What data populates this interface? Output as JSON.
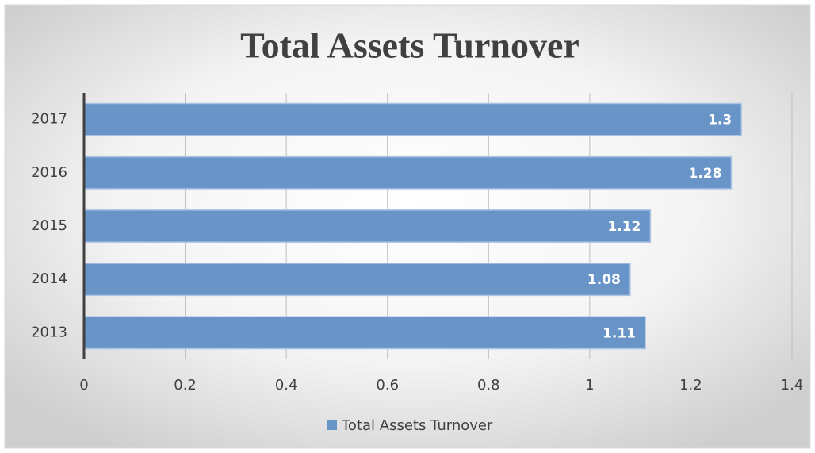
{
  "chart_data": {
    "type": "bar",
    "orientation": "horizontal",
    "title": "Total Assets Turnover",
    "categories": [
      "2017",
      "2016",
      "2015",
      "2014",
      "2013"
    ],
    "series": [
      {
        "name": "Total Assets Turnover",
        "color": "#6894c8",
        "values": [
          1.3,
          1.28,
          1.12,
          1.08,
          1.11
        ]
      }
    ],
    "xlim": [
      0,
      1.4
    ],
    "xticks": [
      0,
      0.2,
      0.4,
      0.6,
      0.8,
      1,
      1.2,
      1.4
    ],
    "grid": true,
    "legend": "bottom"
  }
}
